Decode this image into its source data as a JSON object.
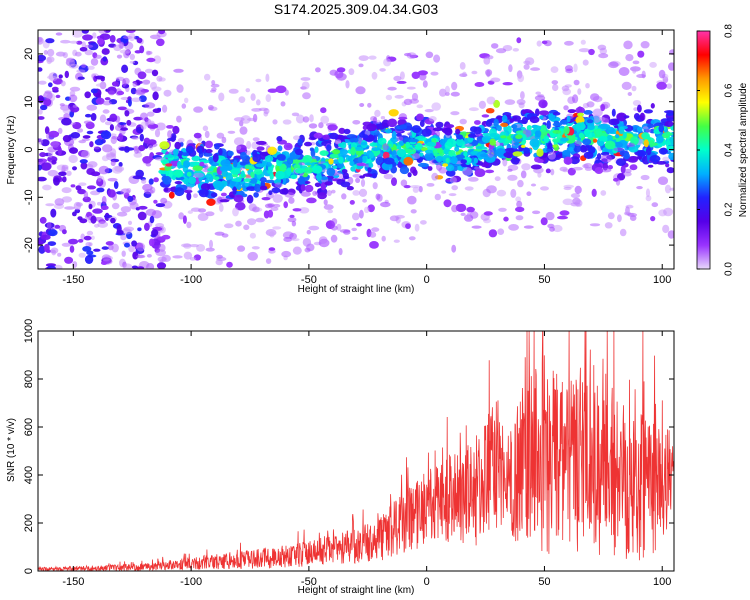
{
  "title": "S174.2025.309.04.34.G03",
  "chart_data": [
    {
      "type": "heatmap",
      "panel": "spectrogram",
      "xlabel": "Height of straight line (km)",
      "ylabel": "Frequency (Hz)",
      "xlim": [
        -165,
        105
      ],
      "ylim": [
        -25,
        25
      ],
      "xticks": [
        -150,
        -100,
        -50,
        0,
        50,
        100
      ],
      "yticks": [
        -20,
        -10,
        0,
        10,
        20
      ],
      "ridge": {
        "x": [
          -110,
          -100,
          -80,
          -60,
          -40,
          -20,
          0,
          10,
          20,
          30,
          40,
          50,
          60,
          70,
          80,
          90,
          100,
          105
        ],
        "center_hz": [
          -3,
          -4,
          -5,
          -4,
          -2,
          0,
          1,
          -1,
          0,
          2,
          3,
          3,
          3,
          3,
          2,
          2,
          2,
          2
        ]
      },
      "colorbar": {
        "label": "Normalized spectral amplitude",
        "range": [
          0.0,
          0.8
        ],
        "ticks": [
          0.0,
          0.2,
          0.4,
          0.6,
          0.8
        ],
        "colors": [
          "#e8d8fa",
          "#9933ff",
          "#5500e8",
          "#2222ff",
          "#00b0ff",
          "#00ffcc",
          "#44ff44",
          "#ffff00",
          "#ff9900",
          "#ff0000",
          "#ff33aa"
        ]
      }
    },
    {
      "type": "line",
      "panel": "snr",
      "xlabel": "Height of straight line (km)",
      "ylabel": "SNR (10 * v/v)",
      "xlim": [
        -165,
        105
      ],
      "ylim": [
        0,
        1000
      ],
      "xticks": [
        -150,
        -100,
        -50,
        0,
        50,
        100
      ],
      "yticks": [
        0,
        200,
        400,
        600,
        800,
        1000
      ],
      "color": "#ee3333",
      "envelope": {
        "x": [
          -165,
          -150,
          -130,
          -120,
          -110,
          -100,
          -80,
          -60,
          -50,
          -40,
          -30,
          -20,
          -10,
          0,
          10,
          20,
          25,
          30,
          35,
          40,
          45,
          50,
          55,
          60,
          70,
          80,
          90,
          100,
          105
        ],
        "mean": [
          8,
          10,
          14,
          18,
          25,
          32,
          45,
          60,
          75,
          90,
          105,
          130,
          200,
          270,
          300,
          330,
          380,
          450,
          370,
          420,
          470,
          480,
          460,
          450,
          420,
          420,
          400,
          400,
          400
        ],
        "spread": [
          8,
          10,
          15,
          18,
          22,
          30,
          40,
          55,
          60,
          70,
          80,
          100,
          150,
          180,
          200,
          250,
          300,
          300,
          250,
          350,
          450,
          480,
          420,
          420,
          400,
          400,
          400,
          380,
          100
        ]
      }
    }
  ]
}
